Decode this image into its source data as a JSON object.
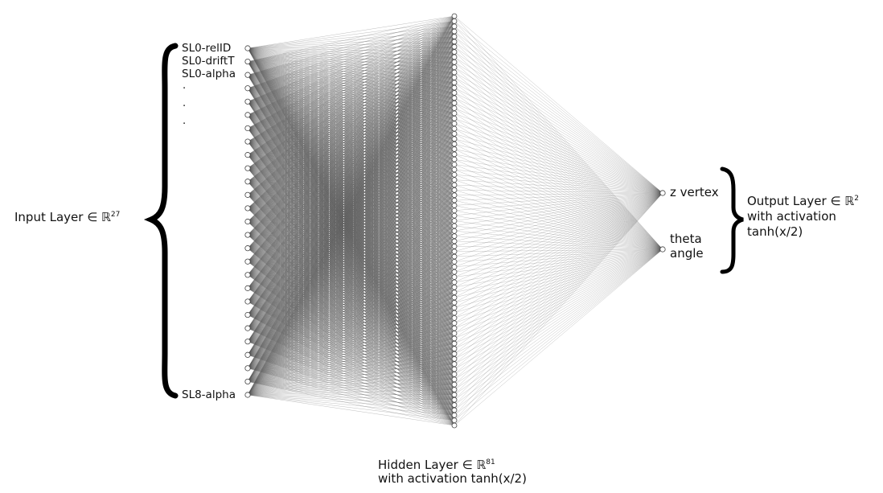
{
  "input_layer": {
    "title": "Input Layer ∈ ℝ",
    "dim": "27",
    "size": 27,
    "node_labels": {
      "first": "SL0-relID",
      "second": "SL0-driftT",
      "third": "SL0-alpha",
      "last": "SL8-alpha"
    },
    "ellipsis": [
      "·",
      "·",
      "·"
    ]
  },
  "hidden_layer": {
    "title": "Hidden Layer ∈ ℝ",
    "dim": "81",
    "size": 81,
    "activation": "with activation tanh(x/2)"
  },
  "output_layer": {
    "title": "Output Layer ∈ ℝ",
    "dim": "2",
    "size": 2,
    "activation_line1": "with activation",
    "activation_line2": "tanh(x/2)",
    "node_labels": {
      "z": "z vertex",
      "theta_line1": "theta",
      "theta_line2": "angle"
    }
  },
  "colors": {
    "edge": "#555555",
    "node_stroke": "#444444",
    "brace": "#000000"
  }
}
